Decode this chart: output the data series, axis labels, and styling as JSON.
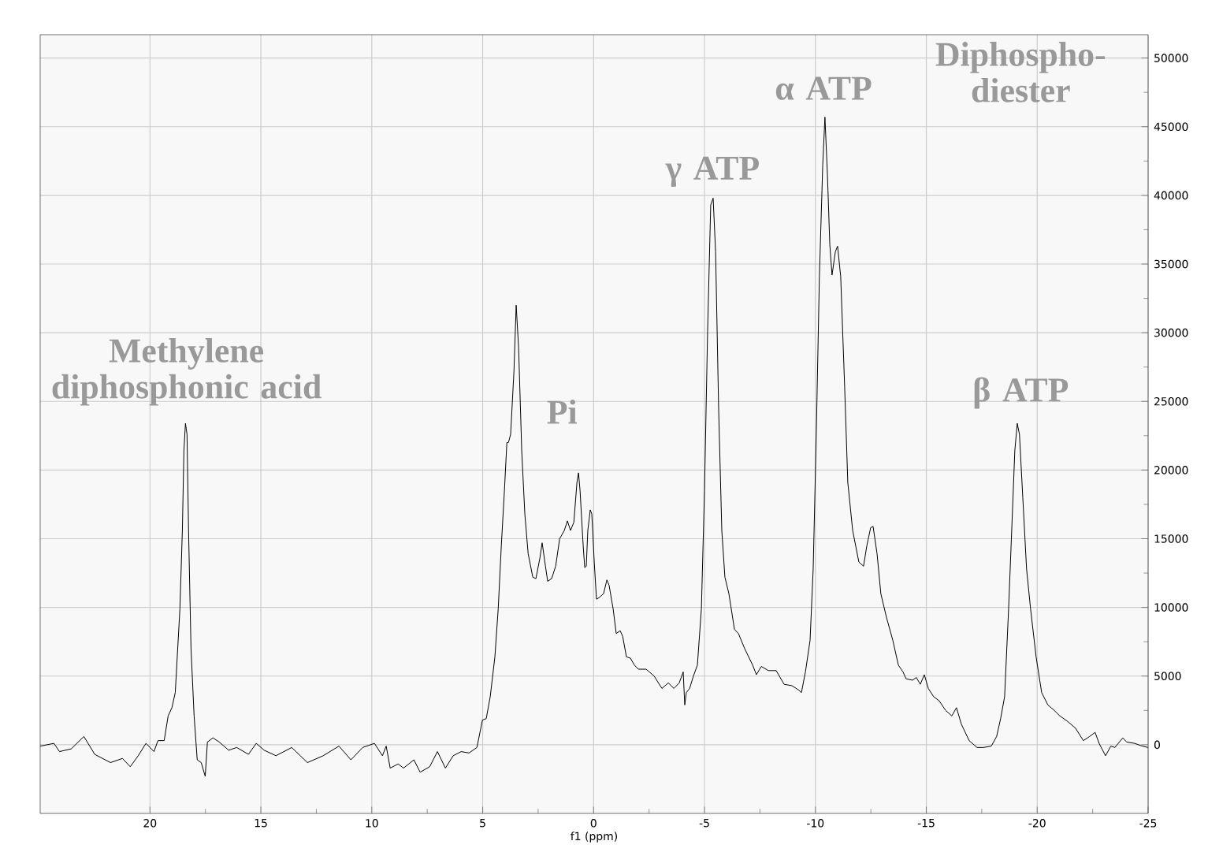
{
  "chart_data": {
    "type": "line",
    "xlabel": "f1 (ppm)",
    "x": [
      24.94,
      24.33,
      24.08,
      23.55,
      22.98,
      22.49,
      21.78,
      21.24,
      20.89,
      20.53,
      20.18,
      19.82,
      19.64,
      19.36,
      19.18,
      19.01,
      18.86,
      18.65,
      18.54,
      18.47,
      18.4,
      18.33,
      18.26,
      18.15,
      18.01,
      17.87,
      17.69,
      17.51,
      17.41,
      17.16,
      16.88,
      16.45,
      16.09,
      15.56,
      15.21,
      14.85,
      14.32,
      13.61,
      12.9,
      12.19,
      11.48,
      10.94,
      10.41,
      9.88,
      9.52,
      9.35,
      9.17,
      8.81,
      8.57,
      8.1,
      7.82,
      7.39,
      7.04,
      6.68,
      6.33,
      5.97,
      5.62,
      5.26,
      5.01,
      4.84,
      4.66,
      4.45,
      4.3,
      4.16,
      4.02,
      3.91,
      3.84,
      3.74,
      3.59,
      3.49,
      3.38,
      3.24,
      3.1,
      2.95,
      2.74,
      2.6,
      2.42,
      2.32,
      2.17,
      2.07,
      1.89,
      1.71,
      1.53,
      1.32,
      1.18,
      1.04,
      0.89,
      0.75,
      0.68,
      0.61,
      0.47,
      0.4,
      0.33,
      0.26,
      0.15,
      0.08,
      -0.03,
      -0.13,
      -0.24,
      -0.45,
      -0.6,
      -0.7,
      -0.88,
      -1.02,
      -1.2,
      -1.31,
      -1.48,
      -1.66,
      -1.84,
      -2.02,
      -2.37,
      -2.73,
      -3.08,
      -3.37,
      -3.62,
      -3.86,
      -4.04,
      -4.11,
      -4.18,
      -4.33,
      -4.5,
      -4.68,
      -4.86,
      -5.0,
      -5.14,
      -5.28,
      -5.39,
      -5.5,
      -5.64,
      -5.78,
      -5.92,
      -6.1,
      -6.35,
      -6.53,
      -6.81,
      -7.17,
      -7.34,
      -7.56,
      -7.88,
      -8.23,
      -8.59,
      -8.94,
      -9.23,
      -9.37,
      -9.55,
      -9.76,
      -9.9,
      -10.04,
      -10.18,
      -10.33,
      -10.43,
      -10.54,
      -10.65,
      -10.75,
      -10.9,
      -11.0,
      -11.14,
      -11.32,
      -11.46,
      -11.68,
      -11.96,
      -12.17,
      -12.32,
      -12.49,
      -12.6,
      -12.78,
      -12.95,
      -13.2,
      -13.49,
      -13.74,
      -13.95,
      -14.09,
      -14.38,
      -14.55,
      -14.73,
      -14.91,
      -15.09,
      -15.33,
      -15.58,
      -15.87,
      -16.15,
      -16.36,
      -16.58,
      -16.93,
      -17.29,
      -17.57,
      -17.93,
      -18.17,
      -18.35,
      -18.53,
      -18.71,
      -18.85,
      -18.99,
      -19.1,
      -19.2,
      -19.35,
      -19.52,
      -19.7,
      -19.95,
      -20.2,
      -20.48,
      -20.77,
      -21.02,
      -21.37,
      -21.73,
      -22.08,
      -22.36,
      -22.61,
      -22.79,
      -23.08,
      -23.32,
      -23.5,
      -23.86,
      -24.03,
      -24.39,
      -24.74,
      -24.99
    ],
    "series": [
      {
        "color": "#000000",
        "values": [
          -100,
          100,
          -500,
          -300,
          600,
          -700,
          -1300,
          -1000,
          -1600,
          -800,
          100,
          -500,
          300,
          300,
          2100,
          2700,
          3800,
          9900,
          15600,
          21400,
          23400,
          22600,
          15600,
          7000,
          2100,
          -1100,
          -1300,
          -2300,
          200,
          500,
          200,
          -400,
          -200,
          -700,
          100,
          -400,
          -800,
          -200,
          -1300,
          -800,
          -100,
          -1100,
          -200,
          100,
          -800,
          -100,
          -1700,
          -1400,
          -1700,
          -1100,
          -2000,
          -1600,
          -500,
          -1700,
          -800,
          -500,
          -600,
          -200,
          1800,
          1900,
          3500,
          6400,
          9900,
          14500,
          18500,
          22000,
          22000,
          22600,
          27200,
          32000,
          28900,
          21400,
          16800,
          13900,
          12200,
          12100,
          13600,
          14700,
          13000,
          11900,
          12100,
          13000,
          15000,
          15600,
          16300,
          15600,
          16200,
          19100,
          19800,
          18500,
          14500,
          12900,
          13000,
          15600,
          17100,
          16800,
          13300,
          10600,
          10700,
          11000,
          12000,
          11600,
          9900,
          8100,
          8300,
          7900,
          6400,
          6300,
          5800,
          5500,
          5500,
          5000,
          4100,
          4500,
          4100,
          4500,
          5300,
          2900,
          3800,
          4100,
          5000,
          5800,
          9900,
          18500,
          30100,
          39300,
          39800,
          35900,
          24300,
          15600,
          12200,
          11000,
          8400,
          8100,
          7000,
          5800,
          5100,
          5700,
          5400,
          5400,
          4400,
          4300,
          4000,
          3800,
          5300,
          7600,
          12800,
          22600,
          34100,
          42200,
          45700,
          41600,
          36400,
          34200,
          35900,
          36300,
          34100,
          26000,
          19100,
          15600,
          13300,
          13000,
          14500,
          15800,
          15900,
          13900,
          11000,
          9300,
          7600,
          5800,
          5300,
          4800,
          4700,
          4900,
          4400,
          5100,
          4100,
          3500,
          3200,
          2500,
          2100,
          2700,
          1500,
          300,
          -200,
          -200,
          -100,
          600,
          1900,
          3500,
          9900,
          15600,
          21400,
          23400,
          22600,
          18000,
          12800,
          9900,
          6400,
          3800,
          2900,
          2500,
          2100,
          1700,
          1200,
          300,
          600,
          900,
          100,
          -800,
          -100,
          -200,
          500,
          200,
          100,
          -100,
          -200
        ]
      }
    ],
    "xlim": [
      24.95,
      -25
    ],
    "ylim": [
      -5000,
      51700
    ],
    "xticks": [
      20,
      15,
      10,
      5,
      0,
      -5,
      -10,
      -15,
      -20,
      -25
    ],
    "yticks": [
      0,
      5000,
      10000,
      15000,
      20000,
      25000,
      30000,
      35000,
      40000,
      45000,
      50000
    ],
    "grid": true,
    "annotations": [
      "Methylene diphosphonic acid",
      "Pi",
      "γ ATP",
      "α ATP",
      "Diphospho-diester",
      "β ATP"
    ]
  }
}
